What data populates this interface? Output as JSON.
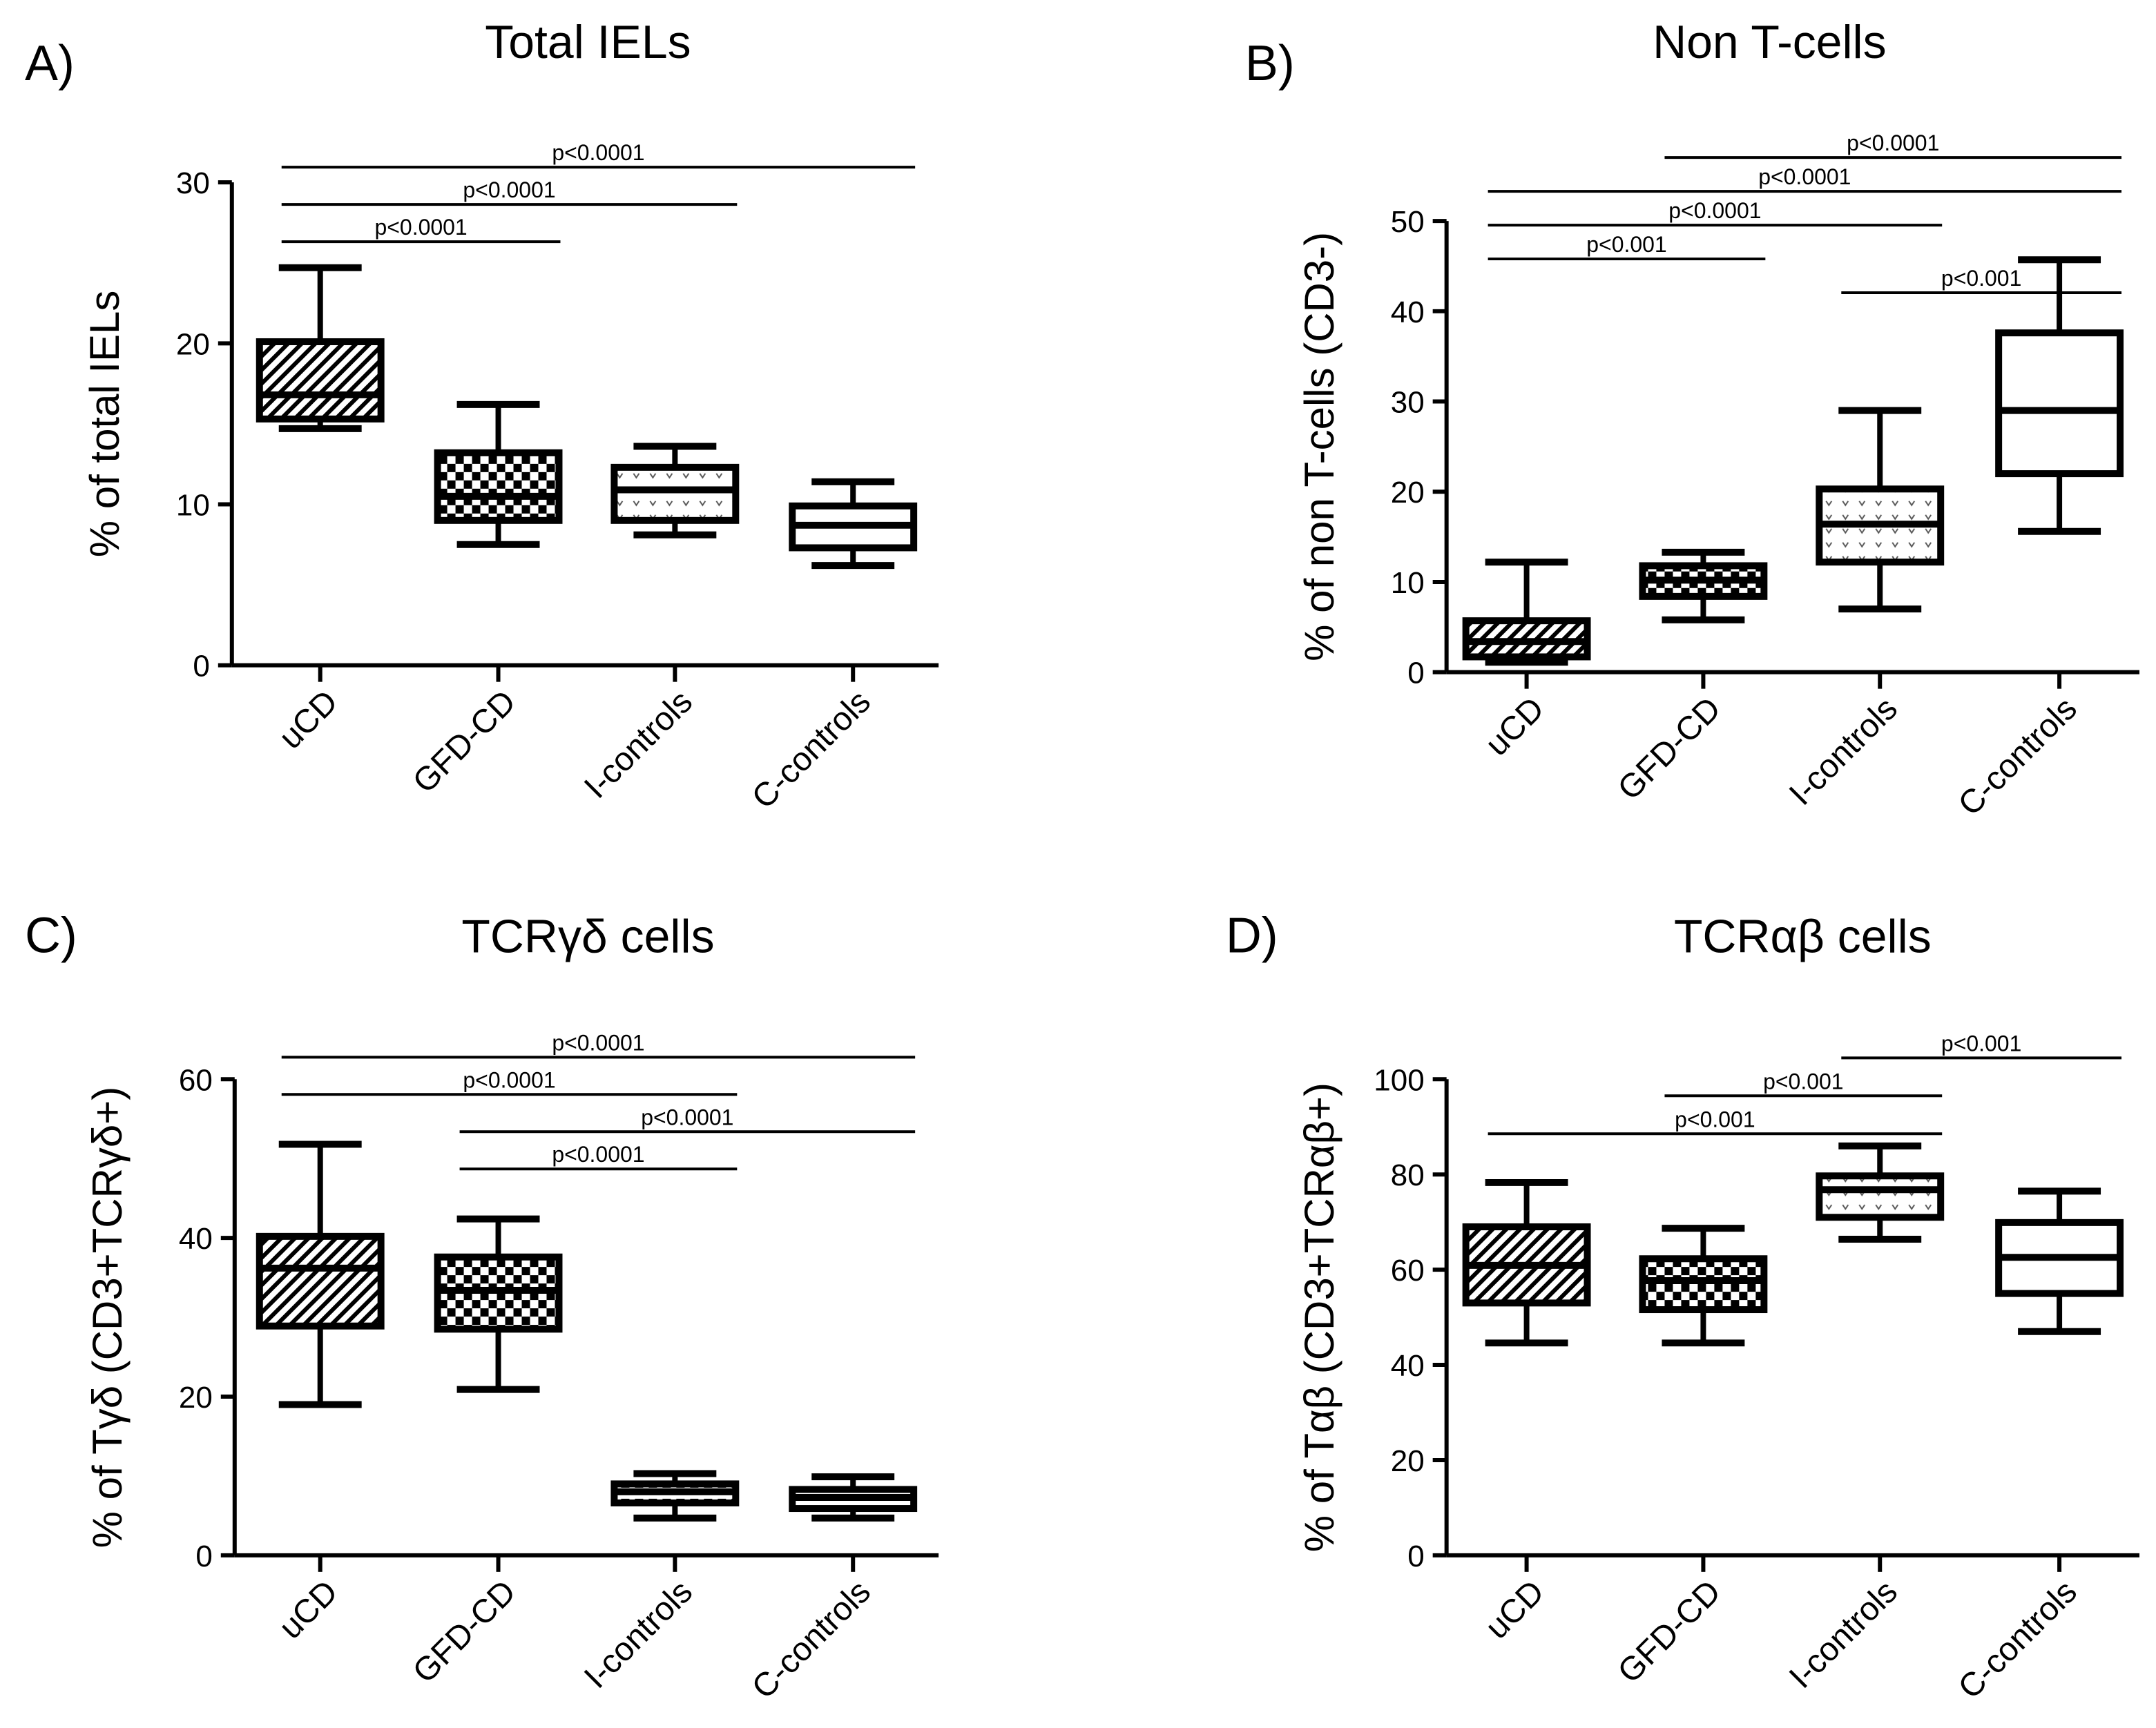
{
  "chart_data": [
    {
      "type": "box",
      "panel_label": "A)",
      "title": "Total IELs",
      "ylabel": "% of total IELs",
      "xlabel": "",
      "ylim": [
        0,
        30
      ],
      "yticks": [
        0,
        10,
        20,
        30
      ],
      "categories": [
        "uCD",
        "GFD-CD",
        "I-controls",
        "C-controls"
      ],
      "patterns": [
        "hatch",
        "checker",
        "vdots",
        "none"
      ],
      "boxes": [
        {
          "min": 14.7,
          "q1": 15.3,
          "median": 16.8,
          "q3": 20.1,
          "max": 24.7
        },
        {
          "min": 7.5,
          "q1": 9.0,
          "median": 10.5,
          "q3": 13.2,
          "max": 16.2
        },
        {
          "min": 8.1,
          "q1": 9.0,
          "median": 10.9,
          "q3": 12.3,
          "max": 13.6
        },
        {
          "min": 6.2,
          "q1": 7.3,
          "median": 8.7,
          "q3": 9.9,
          "max": 11.4
        }
      ],
      "significance": [
        {
          "from": 0,
          "to": 1,
          "label": "p<0.0001",
          "level": 1
        },
        {
          "from": 0,
          "to": 2,
          "label": "p<0.0001",
          "level": 2
        },
        {
          "from": 0,
          "to": 3,
          "label": "p<0.0001",
          "level": 3
        }
      ]
    },
    {
      "type": "box",
      "panel_label": "B)",
      "title": "Non T-cells",
      "ylabel": "% of non T-cells (CD3-)",
      "xlabel": "",
      "ylim": [
        0,
        50
      ],
      "yticks": [
        0,
        10,
        20,
        30,
        40,
        50
      ],
      "categories": [
        "uCD",
        "GFD-CD",
        "I-controls",
        "C-controls"
      ],
      "patterns": [
        "hatch",
        "checker",
        "vdots",
        "none"
      ],
      "boxes": [
        {
          "min": 1.1,
          "q1": 1.7,
          "median": 3.4,
          "q3": 5.7,
          "max": 12.2
        },
        {
          "min": 5.8,
          "q1": 8.4,
          "median": 10.2,
          "q3": 11.8,
          "max": 13.3
        },
        {
          "min": 7.0,
          "q1": 12.2,
          "median": 16.4,
          "q3": 20.3,
          "max": 29.0
        },
        {
          "min": 15.6,
          "q1": 22.0,
          "median": 29.0,
          "q3": 37.6,
          "max": 45.7
        }
      ],
      "significance": [
        {
          "from": 2,
          "to": 3,
          "label": "p<0.001",
          "level": 0
        },
        {
          "from": 0,
          "to": 1,
          "label": "p<0.001",
          "level": 1
        },
        {
          "from": 0,
          "to": 2,
          "label": "p<0.0001",
          "level": 2
        },
        {
          "from": 0,
          "to": 3,
          "label": "p<0.0001",
          "level": 3
        },
        {
          "from": 1,
          "to": 3,
          "label": "p<0.0001",
          "level": 4
        }
      ]
    },
    {
      "type": "box",
      "panel_label": "C)",
      "title": "TCRγδ cells",
      "ylabel": "% of Tγδ (CD3+TCRγδ+)",
      "xlabel": "",
      "ylim": [
        0,
        60
      ],
      "yticks": [
        0,
        20,
        40,
        60
      ],
      "categories": [
        "uCD",
        "GFD-CD",
        "I-controls",
        "C-controls"
      ],
      "patterns": [
        "hatch",
        "checker",
        "dashes",
        "none"
      ],
      "boxes": [
        {
          "min": 19.0,
          "q1": 28.9,
          "median": 36.2,
          "q3": 40.2,
          "max": 51.8
        },
        {
          "min": 20.9,
          "q1": 28.5,
          "median": 33.4,
          "q3": 37.6,
          "max": 42.4
        },
        {
          "min": 4.7,
          "q1": 6.6,
          "median": 8.0,
          "q3": 9.0,
          "max": 10.3
        },
        {
          "min": 4.7,
          "q1": 5.9,
          "median": 7.3,
          "q3": 8.3,
          "max": 9.9
        }
      ],
      "significance": [
        {
          "from": 1,
          "to": 2,
          "label": "p<0.0001",
          "level": 1
        },
        {
          "from": 1,
          "to": 3,
          "label": "p<0.0001",
          "level": 2
        },
        {
          "from": 0,
          "to": 2,
          "label": "p<0.0001",
          "level": 3
        },
        {
          "from": 0,
          "to": 3,
          "label": "p<0.0001",
          "level": 4
        }
      ]
    },
    {
      "type": "box",
      "panel_label": "D)",
      "title": "TCRαβ cells",
      "ylabel": "% of Tαβ (CD3+TCRαβ+)",
      "xlabel": "",
      "ylim": [
        0,
        100
      ],
      "yticks": [
        0,
        20,
        40,
        60,
        80,
        100
      ],
      "categories": [
        "uCD",
        "GFD-CD",
        "I-controls",
        "C-controls"
      ],
      "patterns": [
        "hatch",
        "checker",
        "vdots",
        "none"
      ],
      "boxes": [
        {
          "min": 44.6,
          "q1": 53.0,
          "median": 60.9,
          "q3": 69.0,
          "max": 78.3
        },
        {
          "min": 44.6,
          "q1": 51.6,
          "median": 57.7,
          "q3": 62.3,
          "max": 68.7
        },
        {
          "min": 66.4,
          "q1": 71.0,
          "median": 76.8,
          "q3": 79.7,
          "max": 86.0
        },
        {
          "min": 47.0,
          "q1": 55.0,
          "median": 62.6,
          "q3": 69.9,
          "max": 76.5
        }
      ],
      "significance": [
        {
          "from": 0,
          "to": 2,
          "label": "p<0.001",
          "level": 1
        },
        {
          "from": 1,
          "to": 2,
          "label": "p<0.001",
          "level": 2
        },
        {
          "from": 2,
          "to": 3,
          "label": "p<0.001",
          "level": 3
        }
      ]
    }
  ]
}
